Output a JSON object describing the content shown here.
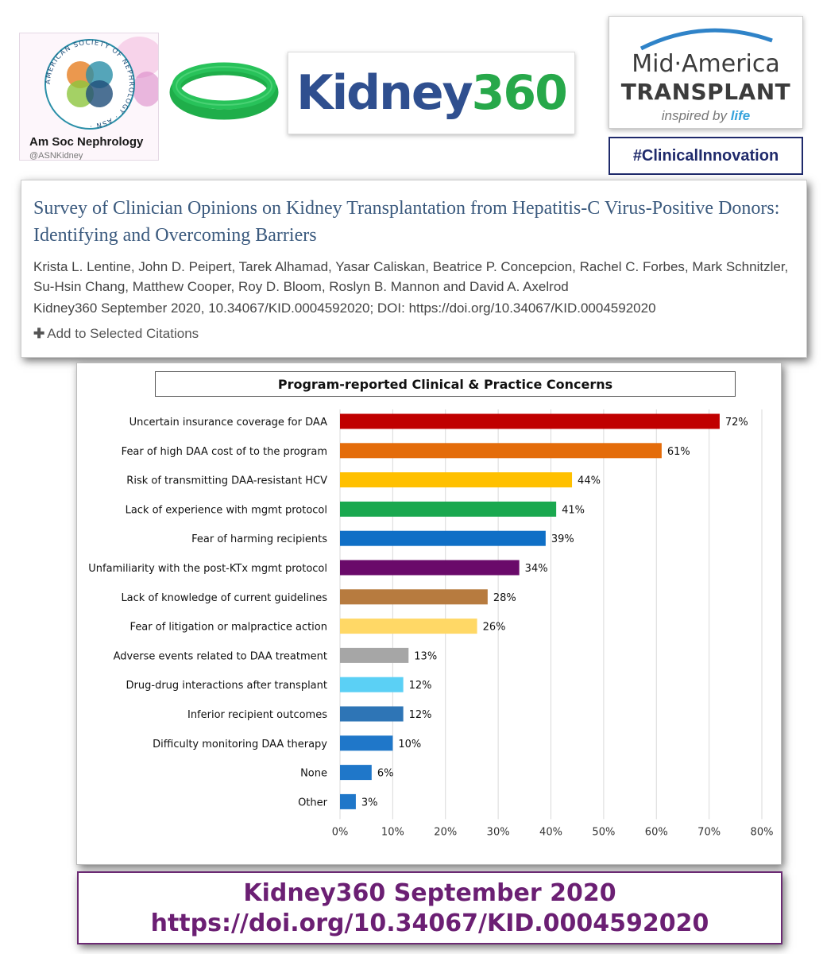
{
  "header": {
    "asn": {
      "name": "Am Soc Nephrology",
      "handle": "@ASNKidney",
      "ring_text": "AMERICAN SOCIETY OF NEPHROLOGY · ASN ·"
    },
    "kidney360": {
      "part1": "Kidney",
      "part2": "360"
    },
    "mat": {
      "line1": "Mid·America",
      "line2": "TRANSPLANT",
      "tagline_prefix": "inspired by",
      "tagline_accent": "life"
    },
    "hashtag": "#ClinicalInnovation",
    "colors": {
      "k360_blue": "#2f4f8f",
      "k360_green": "#27a84a",
      "asn_teal": "#2a8fa8",
      "hashtag_navy": "#1f2a6b"
    }
  },
  "citation": {
    "title": "Survey of Clinician Opinions on Kidney Transplantation from Hepatitis-C Virus-Positive Donors: Identifying and Overcoming Barriers",
    "authors": "Krista L. Lentine, John D. Peipert, Tarek Alhamad, Yasar Caliskan, Beatrice P. Concepcion, Rachel C. Forbes, Mark Schnitzler, Su-Hsin Chang, Matthew Cooper, Roy D. Bloom, Roslyn B. Mannon and David A. Axelrod",
    "source": "Kidney360 September 2020, 10.34067/KID.0004592020; DOI: https://doi.org/10.34067/KID.0004592020",
    "action": "Add to Selected Citations"
  },
  "chart_data": {
    "type": "bar",
    "orientation": "horizontal",
    "title": "Program-reported Clinical & Practice Concerns",
    "xlabel": "",
    "ylabel": "",
    "xlim": [
      0,
      80
    ],
    "x_ticks": [
      "0%",
      "10%",
      "20%",
      "30%",
      "40%",
      "50%",
      "60%",
      "70%",
      "80%"
    ],
    "grid": "vertical gridlines",
    "categories": [
      "Uncertain insurance coverage for DAA",
      "Fear of high DAA cost of to the program",
      "Risk of transmitting DAA-resistant HCV",
      "Lack of experience with mgmt protocol",
      "Fear of harming recipients",
      "Unfamiliarity with the post-KTx mgmt protocol",
      "Lack of knowledge of current guidelines",
      "Fear of litigation or malpractice action",
      "Adverse events related to DAA treatment",
      "Drug-drug interactions after transplant",
      "Inferior recipient outcomes",
      "Difficulty monitoring DAA therapy",
      "None",
      "Other"
    ],
    "values": [
      72,
      61,
      44,
      41,
      39,
      34,
      28,
      26,
      13,
      12,
      12,
      10,
      6,
      3
    ],
    "labels": [
      "72%",
      "61%",
      "44%",
      "41%",
      "39%",
      "34%",
      "28%",
      "26%",
      "13%",
      "12%",
      "12%",
      "10%",
      "6%",
      "3%"
    ],
    "colors": [
      "#c00000",
      "#e46c0a",
      "#ffc000",
      "#1aa84f",
      "#0f6fc6",
      "#6a0a6a",
      "#b77b3f",
      "#ffd866",
      "#a6a6a6",
      "#5bd0f5",
      "#2e75b6",
      "#1f77c9",
      "#1f77c9",
      "#1f77c9"
    ]
  },
  "footer": {
    "line1": "Kidney360 September 2020",
    "line2": "https://doi.org/10.34067/KID.0004592020"
  }
}
